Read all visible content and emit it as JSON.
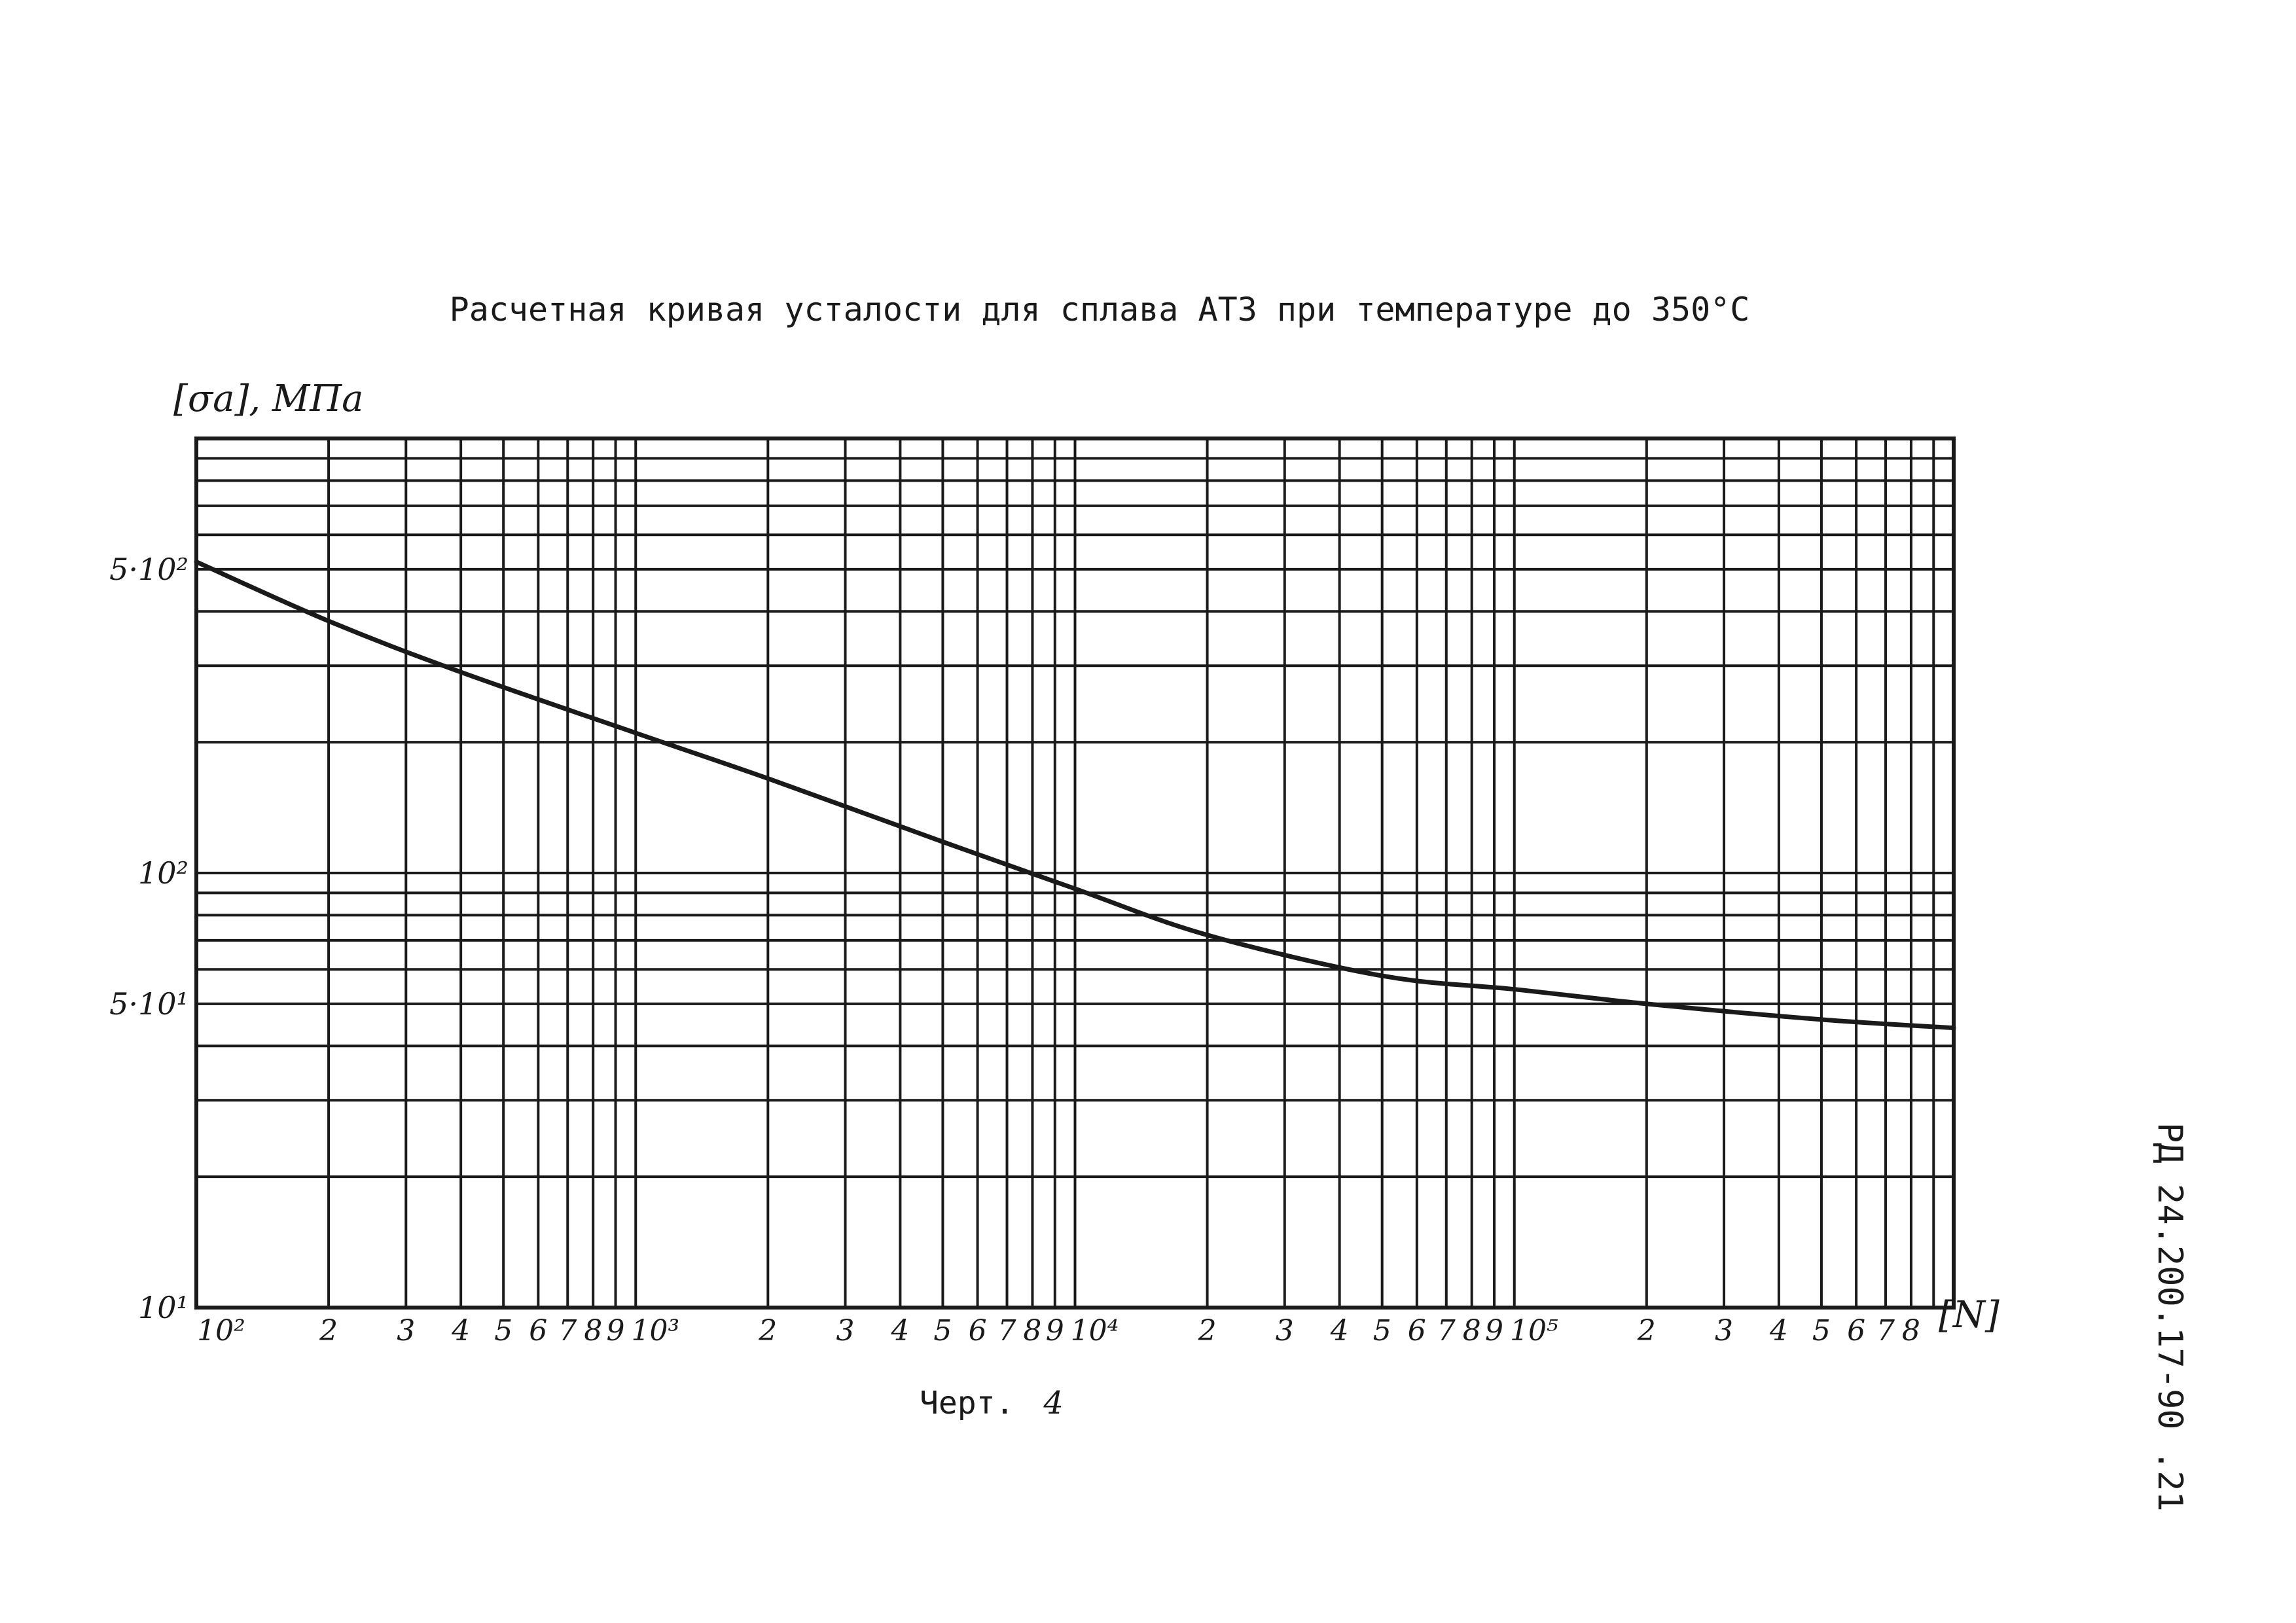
{
  "chart_data": {
    "type": "line",
    "title": "Расчетная кривая усталости для сплава АТ3 при температуре до 350°С",
    "ylabel": "[σa], МПа",
    "xlabel": "[N]",
    "x_scale": "log",
    "y_scale": "log",
    "xlim": [
      100,
      1000000
    ],
    "ylim": [
      10,
      1000
    ],
    "grid": true,
    "x_tick_labels": [
      {
        "value": 100,
        "label": "10²"
      },
      {
        "value": 200,
        "label": "2"
      },
      {
        "value": 300,
        "label": "3"
      },
      {
        "value": 400,
        "label": "4"
      },
      {
        "value": 500,
        "label": "5"
      },
      {
        "value": 600,
        "label": "6"
      },
      {
        "value": 700,
        "label": "7"
      },
      {
        "value": 800,
        "label": "8"
      },
      {
        "value": 900,
        "label": "9"
      },
      {
        "value": 1000,
        "label": "10³"
      },
      {
        "value": 2000,
        "label": "2"
      },
      {
        "value": 3000,
        "label": "3"
      },
      {
        "value": 4000,
        "label": "4"
      },
      {
        "value": 5000,
        "label": "5"
      },
      {
        "value": 6000,
        "label": "6"
      },
      {
        "value": 7000,
        "label": "7"
      },
      {
        "value": 8000,
        "label": "8"
      },
      {
        "value": 9000,
        "label": "9"
      },
      {
        "value": 10000,
        "label": "10⁴"
      },
      {
        "value": 20000,
        "label": "2"
      },
      {
        "value": 30000,
        "label": "3"
      },
      {
        "value": 40000,
        "label": "4"
      },
      {
        "value": 50000,
        "label": "5"
      },
      {
        "value": 60000,
        "label": "6"
      },
      {
        "value": 70000,
        "label": "7"
      },
      {
        "value": 80000,
        "label": "8"
      },
      {
        "value": 90000,
        "label": "9"
      },
      {
        "value": 100000,
        "label": "10⁵"
      },
      {
        "value": 200000,
        "label": "2"
      },
      {
        "value": 300000,
        "label": "3"
      },
      {
        "value": 400000,
        "label": "4"
      },
      {
        "value": 500000,
        "label": "5"
      },
      {
        "value": 600000,
        "label": "6"
      },
      {
        "value": 700000,
        "label": "7"
      },
      {
        "value": 800000,
        "label": "8"
      }
    ],
    "y_tick_labels": [
      {
        "value": 10,
        "label": "10¹"
      },
      {
        "value": 50,
        "label": "5·10¹"
      },
      {
        "value": 100,
        "label": "10²"
      },
      {
        "value": 500,
        "label": "5·10²"
      }
    ],
    "x_grid": [
      100,
      200,
      300,
      400,
      500,
      600,
      700,
      800,
      900,
      1000,
      2000,
      3000,
      4000,
      5000,
      6000,
      7000,
      8000,
      9000,
      10000,
      20000,
      30000,
      40000,
      50000,
      60000,
      70000,
      80000,
      90000,
      100000,
      200000,
      300000,
      400000,
      500000,
      600000,
      700000,
      800000,
      900000,
      1000000
    ],
    "y_grid": [
      10,
      20,
      30,
      40,
      50,
      60,
      70,
      80,
      90,
      100,
      200,
      300,
      400,
      500,
      600,
      700,
      800,
      900,
      1000
    ],
    "series": [
      {
        "x": [
          100,
          200,
          400,
          1000,
          2000,
          5000,
          10000,
          20000,
          50000,
          100000,
          200000,
          500000,
          1000000
        ],
        "y": [
          520,
          380,
          290,
          210,
          165,
          118,
          92,
          72,
          58,
          54,
          50,
          46,
          44
        ]
      }
    ]
  },
  "caption": {
    "prefix": "Черт.",
    "number": "4"
  },
  "side_code": "РД 24.200.17-90 .21",
  "colors": {
    "ink": "#1a1a1a",
    "paper": "#ffffff"
  }
}
